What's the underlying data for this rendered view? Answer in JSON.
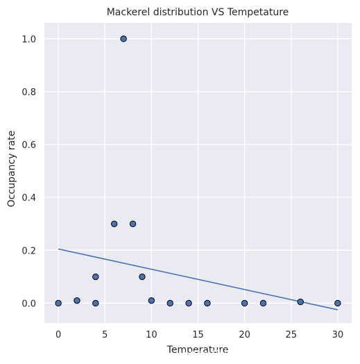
{
  "watermark": "https://blog.csdn.net/PRINCE2327",
  "chart_data": {
    "type": "scatter",
    "title": "Mackerel distribution VS Tempetature",
    "xlabel": "Temperature",
    "ylabel": "Occupancy rate",
    "xlim": [
      -1.5,
      31.5
    ],
    "ylim": [
      -0.075,
      1.06
    ],
    "xticks": [
      0,
      5,
      10,
      15,
      20,
      25,
      30
    ],
    "yticks": [
      0.0,
      0.2,
      0.4,
      0.6,
      0.8,
      1.0
    ],
    "ytick_labels": [
      "0.0",
      "0.2",
      "0.4",
      "0.6",
      "0.8",
      "1.0"
    ],
    "grid": true,
    "background": "#EAEAF2",
    "grid_color": "#FFFFFF",
    "series": [
      {
        "type": "scatter",
        "color": "#4C72B0",
        "edge_color": "#000000",
        "x": [
          0,
          2,
          4,
          4,
          6,
          7,
          8,
          9,
          10,
          12,
          14,
          16,
          20,
          22,
          26,
          30
        ],
        "y": [
          0.0,
          0.01,
          0.1,
          0.0,
          0.3,
          1.0,
          0.3,
          0.1,
          0.01,
          0.0,
          0.0,
          0.0,
          0.0,
          0.0,
          0.005,
          0.0
        ]
      },
      {
        "type": "line",
        "color": "#4C72B0",
        "x": [
          0,
          30
        ],
        "y": [
          0.205,
          -0.025
        ]
      }
    ]
  }
}
